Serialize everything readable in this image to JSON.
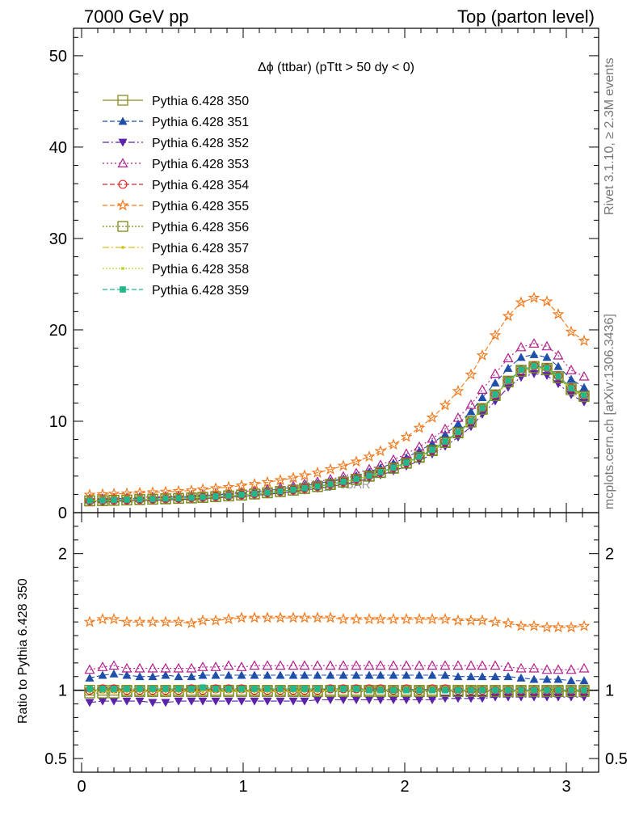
{
  "header": {
    "left": "7000 GeV pp",
    "right": "Top (parton level)"
  },
  "side_labels": {
    "rivet": "Rivet 3.1.10, ≥ 2.3M events",
    "mcplots": "mcplots.cern.ch [arXiv:1306.3436]"
  },
  "watermark": "MC_TTBAR",
  "chart_data": {
    "type": "line",
    "title": "Δϕ (ttbar) (pTtt > 50 dy < 0)",
    "xlabel": "",
    "ylabel": "",
    "ratio_ylabel": "Ratio to Pythia 6.428 350",
    "xlim": [
      -0.05,
      3.2
    ],
    "ylim": [
      0,
      53
    ],
    "ratio_ylim": [
      0.4,
      2.3
    ],
    "x_ticks": [
      0,
      1,
      2,
      3
    ],
    "y_ticks": [
      0,
      10,
      20,
      30,
      40,
      50
    ],
    "ratio_y_ticks": [
      0.5,
      1,
      2
    ],
    "legend_position": "top-left",
    "grid": false,
    "x": [
      0.05,
      0.13,
      0.2,
      0.28,
      0.36,
      0.44,
      0.52,
      0.6,
      0.68,
      0.75,
      0.83,
      0.91,
      0.99,
      1.07,
      1.15,
      1.23,
      1.31,
      1.38,
      1.46,
      1.54,
      1.62,
      1.7,
      1.78,
      1.85,
      1.93,
      2.01,
      2.09,
      2.17,
      2.25,
      2.33,
      2.41,
      2.48,
      2.56,
      2.64,
      2.72,
      2.8,
      2.88,
      2.95,
      3.03,
      3.11
    ],
    "series": [
      {
        "name": "Pythia 6.428 350",
        "color": "#8b8b1f",
        "marker": "square-open",
        "dash": "solid",
        "values": [
          1.3,
          1.32,
          1.36,
          1.4,
          1.44,
          1.48,
          1.52,
          1.57,
          1.62,
          1.68,
          1.76,
          1.84,
          1.94,
          2.05,
          2.18,
          2.32,
          2.48,
          2.66,
          2.86,
          3.1,
          3.36,
          3.66,
          4.02,
          4.42,
          4.9,
          5.45,
          6.1,
          6.85,
          7.75,
          8.8,
          10.0,
          11.4,
          12.9,
          14.4,
          15.6,
          16.0,
          15.8,
          14.9,
          13.6,
          12.8
        ],
        "ratio": [
          1.0,
          1.0,
          1.0,
          1.0,
          1.0,
          1.0,
          1.0,
          1.0,
          1.0,
          1.0,
          1.0,
          1.0,
          1.0,
          1.0,
          1.0,
          1.0,
          1.0,
          1.0,
          1.0,
          1.0,
          1.0,
          1.0,
          1.0,
          1.0,
          1.0,
          1.0,
          1.0,
          1.0,
          1.0,
          1.0,
          1.0,
          1.0,
          1.0,
          1.0,
          1.0,
          1.0,
          1.0,
          1.0,
          1.0,
          1.0
        ]
      },
      {
        "name": "Pythia 6.428 351",
        "color": "#1f4fa8",
        "marker": "triangle-up",
        "dash": "6,3",
        "values": [
          1.42,
          1.46,
          1.52,
          1.55,
          1.58,
          1.63,
          1.68,
          1.73,
          1.78,
          1.87,
          1.96,
          2.05,
          2.15,
          2.28,
          2.42,
          2.58,
          2.76,
          2.96,
          3.18,
          3.44,
          3.72,
          4.05,
          4.46,
          4.9,
          5.42,
          6.03,
          6.75,
          7.58,
          8.57,
          9.72,
          11.05,
          12.6,
          14.2,
          15.8,
          17.0,
          17.3,
          17.0,
          16.0,
          14.6,
          13.7
        ],
        "ratio": [
          1.09,
          1.11,
          1.12,
          1.11,
          1.1,
          1.1,
          1.11,
          1.1,
          1.1,
          1.11,
          1.11,
          1.11,
          1.11,
          1.11,
          1.11,
          1.11,
          1.11,
          1.11,
          1.11,
          1.11,
          1.11,
          1.11,
          1.11,
          1.11,
          1.11,
          1.11,
          1.11,
          1.11,
          1.11,
          1.1,
          1.1,
          1.1,
          1.1,
          1.1,
          1.09,
          1.08,
          1.08,
          1.08,
          1.07,
          1.07
        ]
      },
      {
        "name": "Pythia 6.428 352",
        "color": "#5a23a8",
        "marker": "triangle-down",
        "dash": "8,3,2,3",
        "values": [
          1.18,
          1.21,
          1.25,
          1.28,
          1.32,
          1.35,
          1.39,
          1.44,
          1.49,
          1.54,
          1.61,
          1.69,
          1.79,
          1.89,
          2.01,
          2.14,
          2.29,
          2.46,
          2.65,
          2.87,
          3.11,
          3.4,
          3.73,
          4.11,
          4.56,
          5.08,
          5.69,
          6.4,
          7.25,
          8.25,
          9.4,
          10.75,
          12.2,
          13.7,
          14.8,
          15.2,
          15.0,
          14.1,
          12.9,
          12.1
        ],
        "ratio": [
          0.91,
          0.92,
          0.92,
          0.92,
          0.92,
          0.91,
          0.91,
          0.92,
          0.92,
          0.92,
          0.92,
          0.92,
          0.92,
          0.92,
          0.92,
          0.92,
          0.92,
          0.92,
          0.93,
          0.93,
          0.93,
          0.93,
          0.93,
          0.93,
          0.93,
          0.93,
          0.93,
          0.93,
          0.94,
          0.94,
          0.94,
          0.94,
          0.95,
          0.95,
          0.95,
          0.95,
          0.95,
          0.95,
          0.95,
          0.95
        ]
      },
      {
        "name": "Pythia 6.428 353",
        "color": "#b0208a",
        "marker": "triangle-up-open",
        "dash": "2,3",
        "values": [
          1.5,
          1.54,
          1.6,
          1.63,
          1.67,
          1.72,
          1.77,
          1.83,
          1.88,
          1.97,
          2.07,
          2.17,
          2.28,
          2.42,
          2.57,
          2.74,
          2.93,
          3.14,
          3.38,
          3.66,
          3.96,
          4.32,
          4.75,
          5.22,
          5.79,
          6.44,
          7.21,
          8.1,
          9.15,
          10.38,
          11.8,
          13.45,
          15.2,
          16.9,
          18.1,
          18.5,
          18.2,
          17.2,
          15.6,
          14.9
        ],
        "ratio": [
          1.15,
          1.17,
          1.18,
          1.16,
          1.16,
          1.16,
          1.16,
          1.16,
          1.16,
          1.17,
          1.17,
          1.18,
          1.17,
          1.18,
          1.18,
          1.18,
          1.18,
          1.18,
          1.18,
          1.18,
          1.18,
          1.18,
          1.18,
          1.18,
          1.18,
          1.18,
          1.18,
          1.18,
          1.18,
          1.18,
          1.18,
          1.18,
          1.18,
          1.17,
          1.16,
          1.16,
          1.15,
          1.15,
          1.15,
          1.16
        ]
      },
      {
        "name": "Pythia 6.428 354",
        "color": "#e0252a",
        "marker": "circle-open",
        "dash": "6,3",
        "values": [
          1.3,
          1.33,
          1.37,
          1.4,
          1.44,
          1.48,
          1.52,
          1.57,
          1.63,
          1.68,
          1.77,
          1.85,
          1.95,
          2.06,
          2.19,
          2.33,
          2.49,
          2.67,
          2.87,
          3.12,
          3.38,
          3.68,
          4.04,
          4.44,
          4.92,
          5.48,
          6.13,
          6.89,
          7.79,
          8.84,
          10.05,
          11.45,
          12.95,
          14.45,
          15.6,
          16.05,
          15.85,
          14.95,
          13.65,
          12.85
        ],
        "ratio": [
          1.0,
          1.01,
          1.01,
          1.0,
          1.0,
          1.0,
          1.0,
          1.0,
          1.01,
          1.0,
          1.01,
          1.01,
          1.01,
          1.0,
          1.0,
          1.0,
          1.0,
          1.0,
          1.0,
          1.01,
          1.01,
          1.01,
          1.01,
          1.01,
          1.0,
          1.01,
          1.0,
          1.01,
          1.01,
          1.0,
          1.0,
          1.0,
          1.0,
          1.0,
          1.0,
          1.0,
          1.0,
          1.0,
          1.0,
          1.0
        ]
      },
      {
        "name": "Pythia 6.428 355",
        "color": "#f07a1e",
        "marker": "star-open",
        "dash": "6,3",
        "values": [
          1.95,
          2.0,
          2.06,
          2.1,
          2.16,
          2.22,
          2.28,
          2.35,
          2.42,
          2.54,
          2.66,
          2.8,
          2.96,
          3.13,
          3.33,
          3.55,
          3.8,
          4.07,
          4.37,
          4.73,
          5.12,
          5.58,
          6.12,
          6.73,
          7.45,
          8.29,
          9.27,
          10.4,
          11.75,
          13.3,
          15.1,
          17.2,
          19.4,
          21.5,
          23.0,
          23.5,
          23.1,
          21.7,
          19.8,
          18.8
        ],
        "ratio": [
          1.5,
          1.52,
          1.52,
          1.5,
          1.5,
          1.5,
          1.5,
          1.5,
          1.49,
          1.51,
          1.51,
          1.52,
          1.53,
          1.53,
          1.53,
          1.53,
          1.53,
          1.53,
          1.53,
          1.53,
          1.52,
          1.52,
          1.52,
          1.52,
          1.52,
          1.52,
          1.52,
          1.52,
          1.52,
          1.51,
          1.51,
          1.51,
          1.5,
          1.49,
          1.47,
          1.47,
          1.46,
          1.46,
          1.46,
          1.47
        ]
      },
      {
        "name": "Pythia 6.428 356",
        "color": "#7a8c1a",
        "marker": "square-open",
        "dash": "2,2",
        "values": [
          1.27,
          1.3,
          1.34,
          1.38,
          1.42,
          1.46,
          1.5,
          1.55,
          1.6,
          1.66,
          1.74,
          1.82,
          1.92,
          2.03,
          2.16,
          2.3,
          2.46,
          2.64,
          2.84,
          3.07,
          3.33,
          3.63,
          3.98,
          4.38,
          4.85,
          5.4,
          6.04,
          6.78,
          7.67,
          8.72,
          9.91,
          11.3,
          12.8,
          14.3,
          15.45,
          15.85,
          15.65,
          14.75,
          13.45,
          12.7
        ],
        "ratio": [
          0.98,
          0.98,
          0.98,
          0.99,
          0.99,
          0.99,
          0.99,
          0.99,
          0.99,
          0.99,
          0.99,
          0.99,
          0.99,
          0.99,
          0.99,
          0.99,
          0.99,
          0.99,
          0.99,
          0.99,
          0.99,
          0.99,
          0.99,
          0.99,
          0.99,
          0.99,
          0.99,
          0.99,
          0.99,
          0.99,
          0.99,
          0.99,
          0.99,
          0.99,
          0.99,
          0.99,
          0.99,
          0.99,
          0.99,
          0.99
        ]
      },
      {
        "name": "Pythia 6.428 357",
        "color": "#d4c21a",
        "marker": "dot",
        "dash": "8,3,2,3",
        "values": [
          1.28,
          1.31,
          1.35,
          1.39,
          1.43,
          1.47,
          1.51,
          1.56,
          1.61,
          1.67,
          1.75,
          1.83,
          1.93,
          2.04,
          2.17,
          2.31,
          2.47,
          2.65,
          2.85,
          3.09,
          3.35,
          3.65,
          4.0,
          4.4,
          4.88,
          5.43,
          6.07,
          6.82,
          7.71,
          8.76,
          9.96,
          11.35,
          12.85,
          14.35,
          15.5,
          15.9,
          15.7,
          14.8,
          13.5,
          12.75
        ],
        "ratio": [
          0.99,
          0.99,
          0.99,
          0.99,
          0.99,
          0.99,
          0.99,
          0.99,
          0.99,
          0.99,
          0.99,
          0.99,
          0.99,
          0.99,
          0.99,
          0.99,
          0.99,
          0.99,
          0.99,
          1.0,
          1.0,
          1.0,
          1.0,
          1.0,
          1.0,
          1.0,
          1.0,
          1.0,
          1.0,
          1.0,
          1.0,
          1.0,
          1.0,
          1.0,
          0.99,
          0.99,
          0.99,
          0.99,
          0.99,
          0.99
        ]
      },
      {
        "name": "Pythia 6.428 358",
        "color": "#b6d42a",
        "marker": "dot",
        "dash": "2,2",
        "values": [
          1.3,
          1.32,
          1.36,
          1.4,
          1.44,
          1.48,
          1.52,
          1.57,
          1.62,
          1.68,
          1.76,
          1.84,
          1.94,
          2.05,
          2.18,
          2.32,
          2.48,
          2.66,
          2.86,
          3.1,
          3.36,
          3.66,
          4.02,
          4.42,
          4.9,
          5.45,
          6.1,
          6.85,
          7.75,
          8.8,
          10.0,
          11.4,
          12.9,
          14.4,
          15.6,
          16.0,
          15.8,
          14.9,
          13.6,
          12.8
        ],
        "ratio": [
          1.0,
          1.0,
          1.0,
          1.0,
          1.0,
          1.0,
          1.0,
          1.0,
          1.0,
          1.0,
          1.0,
          1.0,
          1.0,
          1.0,
          1.0,
          1.0,
          1.0,
          1.0,
          1.0,
          1.0,
          1.0,
          1.0,
          1.0,
          1.0,
          1.0,
          1.0,
          1.0,
          1.0,
          1.0,
          1.0,
          1.0,
          1.0,
          1.0,
          1.0,
          1.0,
          1.0,
          1.0,
          1.0,
          1.0,
          1.0
        ]
      },
      {
        "name": "Pythia 6.428 359",
        "color": "#22b88a",
        "marker": "square",
        "dash": "6,3",
        "values": [
          1.31,
          1.33,
          1.38,
          1.42,
          1.46,
          1.49,
          1.54,
          1.58,
          1.64,
          1.71,
          1.78,
          1.86,
          1.96,
          2.07,
          2.2,
          2.34,
          2.5,
          2.68,
          2.88,
          3.12,
          3.38,
          3.68,
          4.04,
          4.44,
          4.92,
          5.48,
          6.12,
          6.87,
          7.78,
          8.82,
          10.02,
          11.42,
          12.93,
          14.43,
          15.63,
          16.03,
          15.82,
          14.92,
          13.62,
          12.82
        ],
        "ratio": [
          1.01,
          1.01,
          1.01,
          1.01,
          1.01,
          1.01,
          1.01,
          1.01,
          1.01,
          1.02,
          1.01,
          1.01,
          1.01,
          1.01,
          1.01,
          1.01,
          1.01,
          1.01,
          1.01,
          1.01,
          1.01,
          1.01,
          1.0,
          1.0,
          1.0,
          1.0,
          1.0,
          1.0,
          1.0,
          1.0,
          1.0,
          1.0,
          1.0,
          1.0,
          1.0,
          1.0,
          1.0,
          1.0,
          1.0,
          1.0
        ]
      }
    ]
  }
}
